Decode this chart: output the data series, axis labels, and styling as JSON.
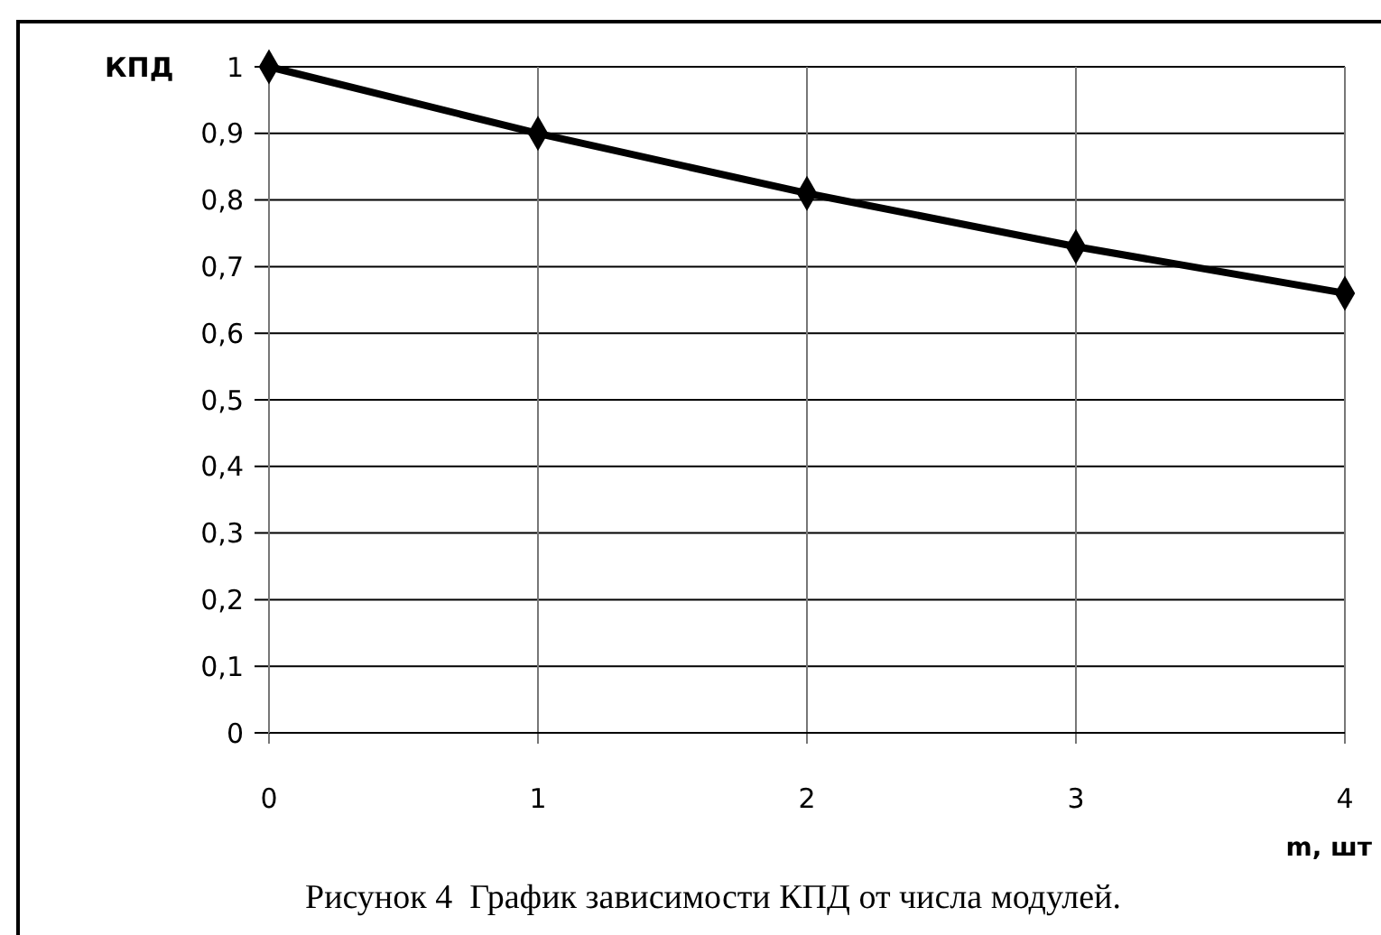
{
  "chart_data": {
    "type": "line",
    "xlabel": "m, шт",
    "ylabel": "КПД",
    "x": [
      0,
      1,
      2,
      3,
      4
    ],
    "series": [
      {
        "color": "#000000",
        "values": [
          1,
          0.9,
          0.81,
          0.73,
          0.66
        ]
      }
    ],
    "xlim": [
      0,
      4
    ],
    "xticks": [
      0,
      1,
      2,
      3,
      4
    ],
    "ylim": [
      0,
      1
    ],
    "yticks": [
      0,
      {
        "value": 0.1,
        "label": "0,1"
      },
      {
        "value": 0.2,
        "label": "0,2"
      },
      {
        "value": 0.3,
        "label": "0,3"
      },
      {
        "value": 0.4,
        "label": "0,4"
      },
      {
        "value": 0.5,
        "label": "0,5"
      },
      {
        "value": 0.6,
        "label": "0,6"
      },
      {
        "value": 0.7,
        "label": "0,7"
      },
      {
        "value": 0.8,
        "label": "0,8"
      },
      {
        "value": 0.9,
        "label": "0,9"
      },
      1
    ],
    "grid": true,
    "marker": "diamond",
    "line_style": "solid",
    "annotations": [
      "Рисунок 4  График зависимости КПД от числа модулей."
    ]
  }
}
